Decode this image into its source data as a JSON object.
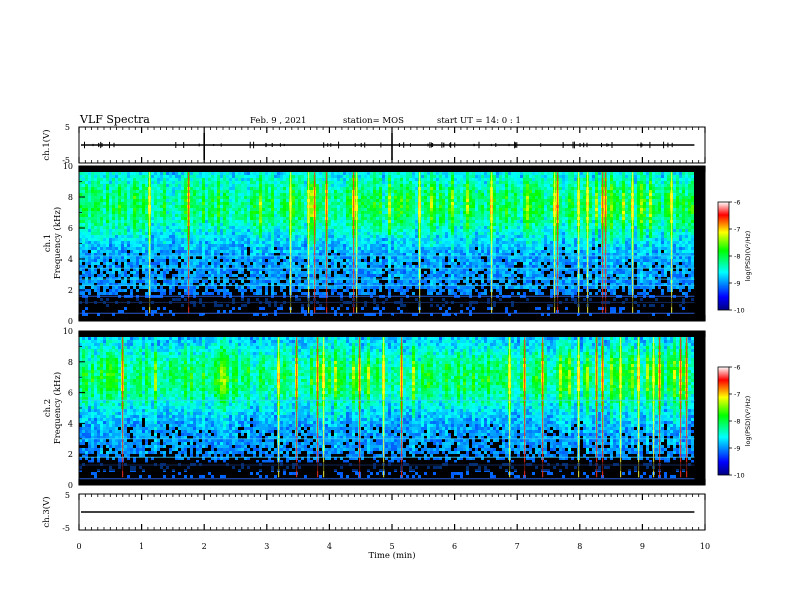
{
  "header": {
    "title": "VLF Spectra",
    "date": "Feb. 9 , 2021",
    "station": "station= MOS",
    "start": "start UT =  14: 0  : 1"
  },
  "chart_data": [
    {
      "type": "line",
      "panel": "waveform-1",
      "ylabel": "ch.1(V)",
      "ylim": [
        -5,
        5
      ],
      "yticks": [
        "5",
        "-5"
      ],
      "baseline": 0,
      "xlim": [
        0,
        10
      ]
    },
    {
      "type": "heatmap",
      "panel": "spectrogram-1",
      "ylabel_channel": "ch.1",
      "ylabel": "Frequency (kHz)",
      "ylim": [
        0,
        10
      ],
      "yticks": [
        "0",
        "2",
        "4",
        "6",
        "8",
        "10"
      ],
      "xlim": [
        0,
        10
      ],
      "data_extent_x": [
        0,
        9.83
      ],
      "band_center_khz": 7.5,
      "colorbar": {
        "label": "log(PSD)(V²/Hz)",
        "range": [
          -10,
          -6
        ],
        "ticks": [
          "-6",
          "-7",
          "-8",
          "-9",
          "-10"
        ]
      }
    },
    {
      "type": "heatmap",
      "panel": "spectrogram-2",
      "ylabel_channel": "ch.2",
      "ylabel": "Frequency (kHz)",
      "ylim": [
        0,
        10
      ],
      "yticks": [
        "0",
        "2",
        "4",
        "6",
        "8",
        "10"
      ],
      "xlim": [
        0,
        10
      ],
      "data_extent_x": [
        0,
        9.83
      ],
      "band_center_khz": 7,
      "colorbar": {
        "label": "log(PSD)(V²/Hz)",
        "range": [
          -10,
          -6
        ],
        "ticks": [
          "-6",
          "-7",
          "-8",
          "-9",
          "-10"
        ]
      }
    },
    {
      "type": "line",
      "panel": "waveform-3",
      "ylabel": "ch.3(V)",
      "ylim": [
        -5,
        5
      ],
      "yticks": [
        "5",
        "-5"
      ],
      "baseline": 0,
      "xlim": [
        0,
        10
      ]
    }
  ],
  "xaxis": {
    "label": "Time (min)",
    "ticks": [
      "0",
      "1",
      "2",
      "3",
      "4",
      "5",
      "6",
      "7",
      "8",
      "9",
      "10"
    ]
  },
  "colors": {
    "axis": "#000000",
    "background": "#ffffff"
  }
}
